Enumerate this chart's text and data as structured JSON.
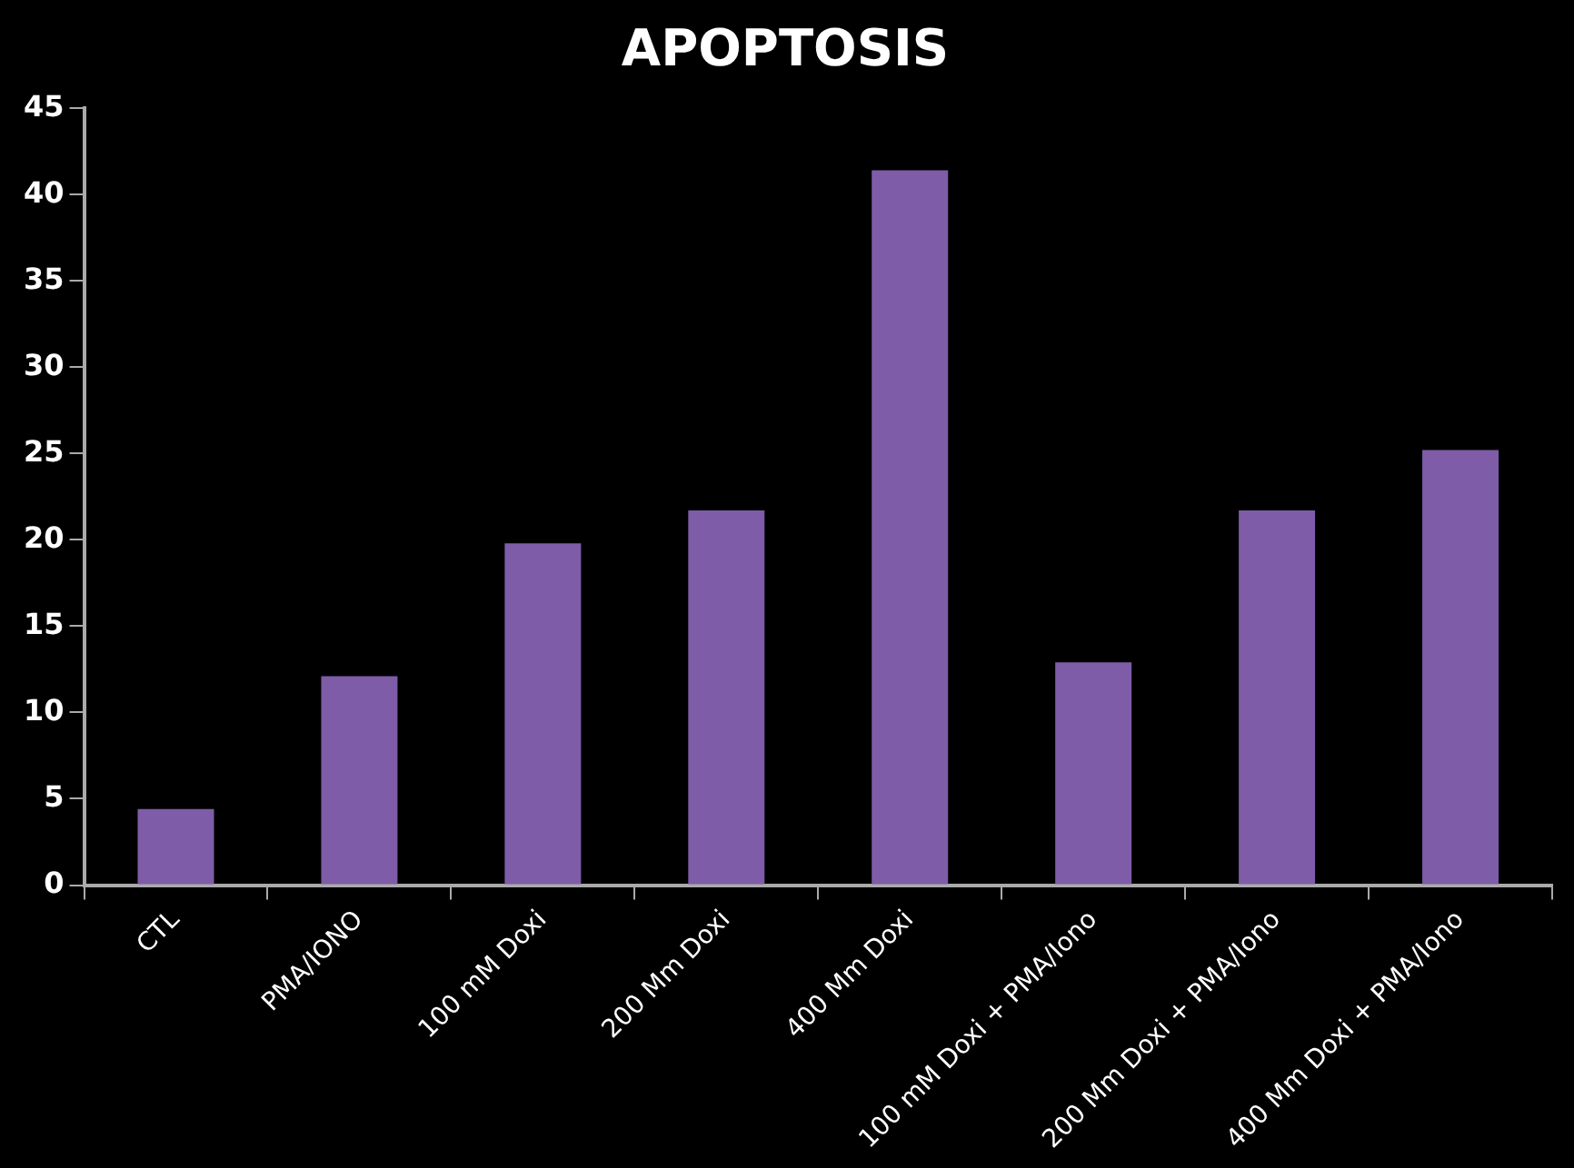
{
  "chart_data": {
    "type": "bar",
    "title": "APOPTOSIS",
    "categories": [
      "CTL",
      "PMA/IONO",
      "100 mM Doxi",
      "200 Mm Doxi",
      "400 Mm Doxi",
      "100 mM Doxi + PMA/Iono",
      "200 Mm Doxi + PMA/Iono",
      "400 Mm Doxi + PMA/Iono"
    ],
    "values": [
      4.4,
      12.1,
      19.8,
      21.7,
      41.4,
      12.9,
      21.7,
      25.2
    ],
    "color": "#7e5ca8",
    "ylim": [
      0,
      45
    ],
    "yticks": [
      0,
      5,
      10,
      15,
      20,
      25,
      30,
      35,
      40,
      45
    ],
    "legend": false
  }
}
